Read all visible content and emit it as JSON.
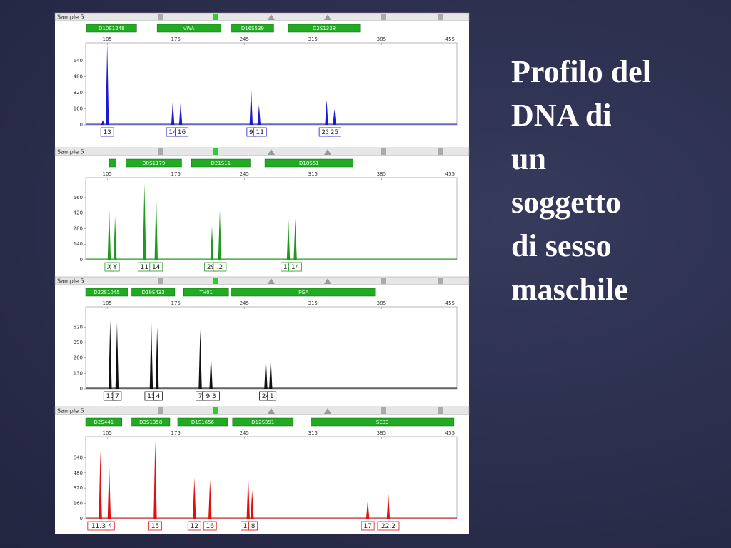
{
  "slide": {
    "title_lines": [
      "Profilo del",
      "DNA di",
      "un",
      "soggetto",
      "di sesso",
      "maschile"
    ]
  },
  "panels": [
    {
      "sample": "Sample 5",
      "color": "#1a1ad0",
      "xlim": [
        83,
        462
      ],
      "xticks": [
        105,
        175,
        245,
        315,
        385,
        455
      ],
      "ylim": [
        0,
        820
      ],
      "yticks": [
        0,
        160,
        320,
        480,
        640
      ],
      "markers": [
        {
          "label": "D10S1248",
          "range": [
            84,
            135
          ]
        },
        {
          "label": "vWA",
          "range": [
            156,
            221
          ]
        },
        {
          "label": "D16S539",
          "range": [
            232,
            275
          ]
        },
        {
          "label": "D2S1338",
          "range": [
            290,
            363
          ]
        }
      ],
      "peaks": [
        {
          "x": 100.5,
          "height": 50
        },
        {
          "x": 105,
          "height": 820
        },
        {
          "x": 172,
          "height": 240
        },
        {
          "x": 180,
          "height": 230
        },
        {
          "x": 252,
          "height": 380
        },
        {
          "x": 260,
          "height": 200
        },
        {
          "x": 329,
          "height": 250
        },
        {
          "x": 337,
          "height": 160
        }
      ],
      "alleles": [
        {
          "label": "13",
          "x": 105
        },
        {
          "label": "14",
          "x": 172
        },
        {
          "label": "16",
          "x": 181
        },
        {
          "label": "9",
          "x": 252
        },
        {
          "label": "11",
          "x": 261
        },
        {
          "label": "23",
          "x": 328
        },
        {
          "label": "25",
          "x": 337
        }
      ]
    },
    {
      "sample": "Sample 5",
      "color": "#1f9a1f",
      "xlim": [
        83,
        462
      ],
      "xticks": [
        105,
        175,
        245,
        315,
        385,
        455
      ],
      "ylim": [
        0,
        740
      ],
      "yticks": [
        0,
        140,
        280,
        420,
        560
      ],
      "markers": [
        {
          "range": [
            107,
            114
          ]
        },
        {
          "label": "D8S1179",
          "range": [
            124,
            181
          ]
        },
        {
          "label": "D21S11",
          "range": [
            191,
            251
          ]
        },
        {
          "label": "D18S51",
          "range": [
            266,
            356
          ]
        }
      ],
      "peaks": [
        {
          "x": 107,
          "height": 470
        },
        {
          "x": 113,
          "height": 390
        },
        {
          "x": 143,
          "height": 690
        },
        {
          "x": 155,
          "height": 600
        },
        {
          "x": 212,
          "height": 300
        },
        {
          "x": 220,
          "height": 450
        },
        {
          "x": 290,
          "height": 370
        },
        {
          "x": 297,
          "height": 370
        }
      ],
      "alleles": [
        {
          "label": "X",
          "x": 107
        },
        {
          "label": "Y",
          "x": 113
        },
        {
          "label": "11",
          "x": 143
        },
        {
          "label": "14",
          "x": 155
        },
        {
          "label": "29",
          "x": 211
        },
        {
          "label": ".2",
          "x": 220
        },
        {
          "label": "12",
          "x": 289
        },
        {
          "label": "14",
          "x": 297
        }
      ]
    },
    {
      "sample": "Sample 5",
      "color": "#111111",
      "xlim": [
        83,
        462
      ],
      "xticks": [
        105,
        175,
        245,
        315,
        385,
        455
      ],
      "ylim": [
        0,
        690
      ],
      "yticks": [
        0,
        130,
        260,
        390,
        520
      ],
      "markers": [
        {
          "label": "D22S1045",
          "range": [
            83,
            126
          ]
        },
        {
          "label": "D19S433",
          "range": [
            130,
            174
          ]
        },
        {
          "label": "TH01",
          "range": [
            183,
            229
          ]
        },
        {
          "label": "FGA",
          "range": [
            232,
            379
          ]
        }
      ],
      "peaks": [
        {
          "x": 108,
          "height": 580
        },
        {
          "x": 115,
          "height": 560
        },
        {
          "x": 150,
          "height": 580
        },
        {
          "x": 156,
          "height": 520
        },
        {
          "x": 200,
          "height": 500
        },
        {
          "x": 211,
          "height": 290
        },
        {
          "x": 267,
          "height": 270
        },
        {
          "x": 272,
          "height": 270
        }
      ],
      "alleles": [
        {
          "label": "15",
          "x": 108
        },
        {
          "label": "7",
          "x": 115
        },
        {
          "label": "13",
          "x": 150
        },
        {
          "label": "4",
          "x": 157
        },
        {
          "label": "7",
          "x": 200
        },
        {
          "label": "9.3",
          "x": 211
        },
        {
          "label": "24",
          "x": 267
        },
        {
          "label": "1",
          "x": 273
        }
      ]
    },
    {
      "sample": "Sample 5",
      "color": "#e01010",
      "xlim": [
        83,
        462
      ],
      "xticks": [
        105,
        175,
        245,
        315,
        385,
        455
      ],
      "ylim": [
        0,
        860
      ],
      "yticks": [
        0,
        160,
        320,
        480,
        640
      ],
      "markers": [
        {
          "label": "D2S441",
          "range": [
            83,
            120
          ]
        },
        {
          "label": "D3S1358",
          "range": [
            130,
            169
          ]
        },
        {
          "label": "D1S1656",
          "range": [
            177,
            228
          ]
        },
        {
          "label": "D12S391",
          "range": [
            233,
            295
          ]
        },
        {
          "label": "SE33",
          "range": [
            313,
            459
          ]
        }
      ],
      "peaks": [
        {
          "x": 98,
          "height": 710
        },
        {
          "x": 107,
          "height": 560
        },
        {
          "x": 154,
          "height": 820
        },
        {
          "x": 194,
          "height": 430
        },
        {
          "x": 210,
          "height": 410
        },
        {
          "x": 249,
          "height": 460
        },
        {
          "x": 253,
          "height": 300
        },
        {
          "x": 371,
          "height": 200
        },
        {
          "x": 392,
          "height": 270
        }
      ],
      "alleles": [
        {
          "label": "11.3",
          "x": 96
        },
        {
          "label": "4",
          "x": 108
        },
        {
          "label": "15",
          "x": 154
        },
        {
          "label": "12",
          "x": 194
        },
        {
          "label": "16",
          "x": 210
        },
        {
          "label": "17",
          "x": 248
        },
        {
          "label": "8",
          "x": 254
        },
        {
          "label": "17",
          "x": 371
        },
        {
          "label": "22.2",
          "x": 392
        }
      ]
    }
  ]
}
